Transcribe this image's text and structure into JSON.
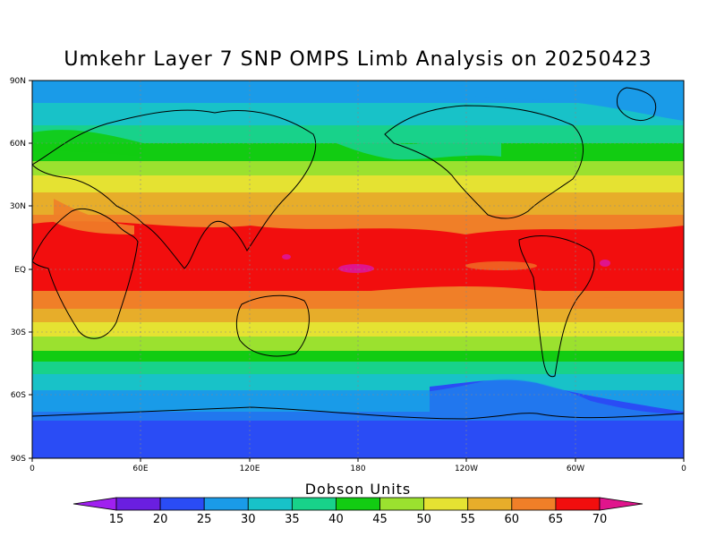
{
  "title": "Umkehr Layer 7 SNP OMPS Limb Analysis on 20250423",
  "map": {
    "lat_labels": [
      "90N",
      "60N",
      "30N",
      "EQ",
      "30S",
      "60S",
      "90S"
    ],
    "lon_labels": [
      "0",
      "60E",
      "120E",
      "180",
      "120W",
      "60W",
      "0"
    ]
  },
  "colorbar": {
    "title": "Dobson Units",
    "ticks": [
      "15",
      "20",
      "25",
      "30",
      "35",
      "40",
      "45",
      "50",
      "55",
      "60",
      "65",
      "70"
    ],
    "colors": [
      "#a020f0",
      "#6a1fe0",
      "#2a4cf5",
      "#1a9be8",
      "#18c2c8",
      "#18d28a",
      "#12cc12",
      "#9be12f",
      "#e5e232",
      "#e7ad2a",
      "#f07f28",
      "#f20e0e",
      "#e0148c"
    ]
  }
}
